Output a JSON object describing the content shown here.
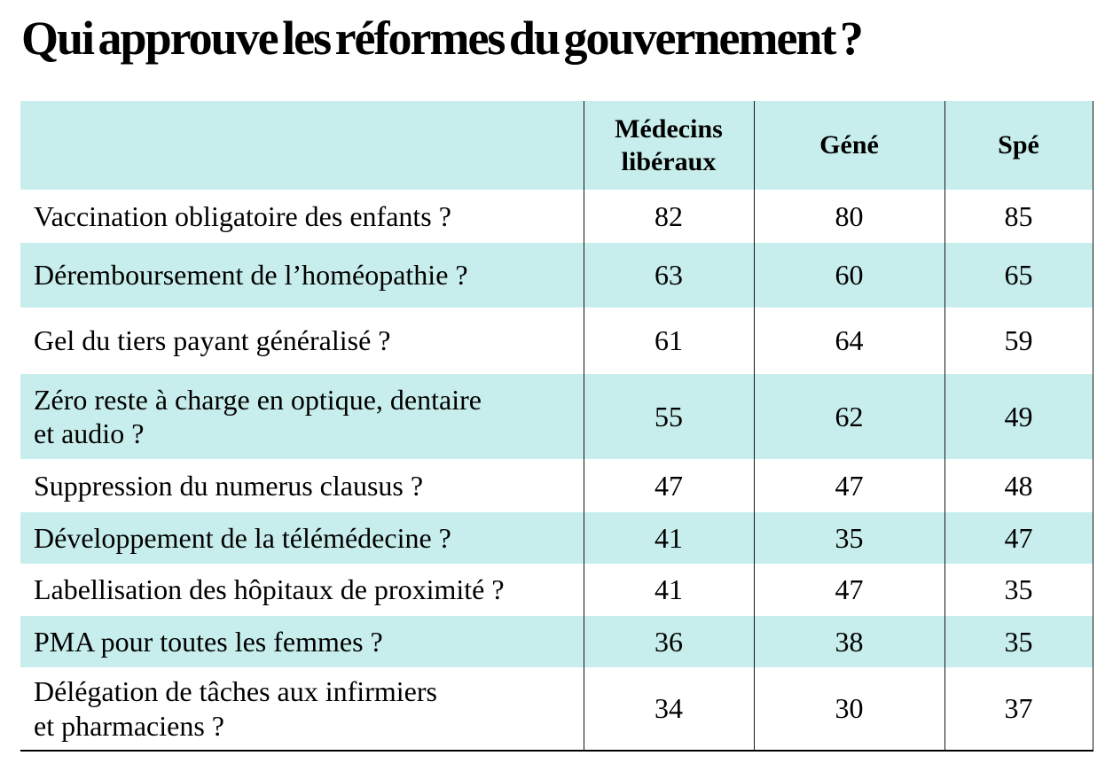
{
  "title": "Qui approuve les réformes du gouvernement ?",
  "colors": {
    "stripe": "#c7eeec",
    "border": "#161616",
    "text": "#000000",
    "background": "#ffffff"
  },
  "chart_data": {
    "type": "table",
    "title": "Qui approuve les réformes du gouvernement ?",
    "columns": [
      "",
      "Médecins libéraux",
      "Géné",
      "Spé"
    ],
    "rows": [
      {
        "question": "Vaccination obligatoire des enfants ?",
        "values": [
          82,
          80,
          85
        ]
      },
      {
        "question": "Déremboursement de l’homéopathie ?",
        "values": [
          63,
          60,
          65
        ]
      },
      {
        "question": "Gel du tiers payant généralisé ?",
        "values": [
          61,
          64,
          59
        ]
      },
      {
        "question": "Zéro reste à charge en optique, dentaire\net audio ?",
        "values": [
          55,
          62,
          49
        ]
      },
      {
        "question": "Suppression du numerus clausus ?",
        "values": [
          47,
          47,
          48
        ]
      },
      {
        "question": "Développement de la télémédecine ?",
        "values": [
          41,
          35,
          47
        ]
      },
      {
        "question": "Labellisation des hôpitaux de proximité ?",
        "values": [
          41,
          47,
          35
        ]
      },
      {
        "question": "PMA pour toutes les femmes ?",
        "values": [
          36,
          38,
          35
        ]
      },
      {
        "question": "Délégation de tâches aux infirmiers\net pharmaciens ?",
        "values": [
          34,
          30,
          37
        ]
      }
    ],
    "layout": {
      "row_striping": "alternate rows highlighted",
      "grid": "vertical separators between value columns, bottom rule"
    }
  }
}
